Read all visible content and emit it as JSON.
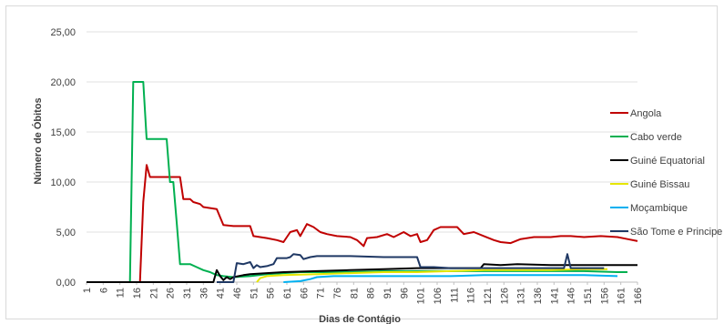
{
  "chart_data": {
    "type": "line",
    "title": "",
    "xlabel": "Dias de Contágio",
    "ylabel": "Número de Óbitos",
    "ylim": [
      0,
      25
    ],
    "xlim": [
      1,
      166
    ],
    "yticks": [
      "0,00",
      "5,00",
      "10,00",
      "15,00",
      "20,00",
      "25,00"
    ],
    "xticks": [
      "1",
      "6",
      "11",
      "16",
      "21",
      "26",
      "31",
      "36",
      "41",
      "46",
      "51",
      "56",
      "61",
      "66",
      "71",
      "76",
      "81",
      "86",
      "91",
      "96",
      "101",
      "106",
      "111",
      "116",
      "121",
      "126",
      "131",
      "136",
      "141",
      "146",
      "151",
      "156",
      "161",
      "166"
    ],
    "grid": true,
    "legend_position": "right",
    "series": [
      {
        "name": "Angola",
        "color": "#c00000",
        "points": [
          [
            1,
            0
          ],
          [
            17,
            0
          ],
          [
            18,
            8
          ],
          [
            19,
            11.7
          ],
          [
            20,
            10.5
          ],
          [
            29,
            10.5
          ],
          [
            30,
            8.3
          ],
          [
            32,
            8.3
          ],
          [
            33,
            8
          ],
          [
            35,
            7.8
          ],
          [
            36,
            7.5
          ],
          [
            40,
            7.3
          ],
          [
            42,
            5.7
          ],
          [
            45,
            5.6
          ],
          [
            50,
            5.6
          ],
          [
            51,
            4.6
          ],
          [
            55,
            4.4
          ],
          [
            58,
            4.2
          ],
          [
            60,
            4
          ],
          [
            62,
            5
          ],
          [
            64,
            5.2
          ],
          [
            65,
            4.6
          ],
          [
            67,
            5.8
          ],
          [
            69,
            5.5
          ],
          [
            71,
            5
          ],
          [
            73,
            4.8
          ],
          [
            76,
            4.6
          ],
          [
            80,
            4.5
          ],
          [
            82,
            4.2
          ],
          [
            84,
            3.6
          ],
          [
            85,
            4.4
          ],
          [
            88,
            4.5
          ],
          [
            91,
            4.8
          ],
          [
            93,
            4.5
          ],
          [
            96,
            5
          ],
          [
            98,
            4.6
          ],
          [
            100,
            4.8
          ],
          [
            101,
            4
          ],
          [
            103,
            4.2
          ],
          [
            105,
            5.2
          ],
          [
            107,
            5.5
          ],
          [
            112,
            5.5
          ],
          [
            114,
            4.8
          ],
          [
            117,
            5
          ],
          [
            120,
            4.6
          ],
          [
            123,
            4.2
          ],
          [
            125,
            4
          ],
          [
            128,
            3.9
          ],
          [
            131,
            4.3
          ],
          [
            135,
            4.5
          ],
          [
            140,
            4.5
          ],
          [
            143,
            4.6
          ],
          [
            146,
            4.6
          ],
          [
            150,
            4.5
          ],
          [
            155,
            4.6
          ],
          [
            160,
            4.5
          ],
          [
            163,
            4.3
          ],
          [
            166,
            4.1
          ]
        ]
      },
      {
        "name": "Cabo verde",
        "color": "#00b050",
        "points": [
          [
            1,
            0
          ],
          [
            14,
            0
          ],
          [
            15,
            20
          ],
          [
            18,
            20
          ],
          [
            19,
            14.3
          ],
          [
            25,
            14.3
          ],
          [
            26,
            10
          ],
          [
            27,
            10
          ],
          [
            28,
            6
          ],
          [
            29,
            1.8
          ],
          [
            32,
            1.8
          ],
          [
            34,
            1.5
          ],
          [
            36,
            1.2
          ],
          [
            38,
            1
          ],
          [
            40,
            0.7
          ],
          [
            42,
            0.6
          ],
          [
            45,
            0.5
          ],
          [
            50,
            0.6
          ],
          [
            55,
            0.8
          ],
          [
            60,
            0.9
          ],
          [
            65,
            1
          ],
          [
            70,
            1
          ],
          [
            80,
            1
          ],
          [
            90,
            1.1
          ],
          [
            100,
            1.1
          ],
          [
            110,
            1.1
          ],
          [
            120,
            1.1
          ],
          [
            130,
            1.1
          ],
          [
            140,
            1.1
          ],
          [
            150,
            1.1
          ],
          [
            160,
            1
          ],
          [
            163,
            1
          ]
        ]
      },
      {
        "name": "Guiné Equatorial",
        "color": "#000000",
        "points": [
          [
            1,
            0
          ],
          [
            39,
            0
          ],
          [
            40,
            1.2
          ],
          [
            41,
            0.6
          ],
          [
            42,
            0.2
          ],
          [
            43,
            0.5
          ],
          [
            44,
            0.3
          ],
          [
            45,
            0.5
          ],
          [
            48,
            0.7
          ],
          [
            50,
            0.8
          ],
          [
            55,
            0.9
          ],
          [
            60,
            1
          ],
          [
            70,
            1.1
          ],
          [
            80,
            1.2
          ],
          [
            90,
            1.3
          ],
          [
            100,
            1.4
          ],
          [
            110,
            1.4
          ],
          [
            119,
            1.4
          ],
          [
            120,
            1.8
          ],
          [
            125,
            1.7
          ],
          [
            130,
            1.8
          ],
          [
            140,
            1.7
          ],
          [
            150,
            1.7
          ],
          [
            160,
            1.7
          ],
          [
            166,
            1.7
          ]
        ]
      },
      {
        "name": "Guiné Bissau",
        "color": "#e6e600",
        "points": [
          [
            52,
            0
          ],
          [
            53,
            0.4
          ],
          [
            55,
            0.6
          ],
          [
            60,
            0.7
          ],
          [
            70,
            0.8
          ],
          [
            80,
            0.9
          ],
          [
            90,
            1
          ],
          [
            100,
            1
          ],
          [
            110,
            1.1
          ],
          [
            120,
            1.2
          ],
          [
            130,
            1.2
          ],
          [
            140,
            1.2
          ],
          [
            150,
            1.3
          ],
          [
            157,
            1.3
          ]
        ]
      },
      {
        "name": "Moçambique",
        "color": "#00b0f0",
        "points": [
          [
            60,
            0
          ],
          [
            65,
            0.1
          ],
          [
            68,
            0.3
          ],
          [
            70,
            0.5
          ],
          [
            75,
            0.6
          ],
          [
            80,
            0.6
          ],
          [
            90,
            0.6
          ],
          [
            100,
            0.6
          ],
          [
            110,
            0.6
          ],
          [
            120,
            0.7
          ],
          [
            130,
            0.7
          ],
          [
            140,
            0.7
          ],
          [
            150,
            0.7
          ],
          [
            160,
            0.6
          ]
        ]
      },
      {
        "name": "São Tome e Principe",
        "color": "#1f3864",
        "points": [
          [
            40,
            0
          ],
          [
            45,
            0
          ],
          [
            46,
            1.9
          ],
          [
            48,
            1.8
          ],
          [
            50,
            2
          ],
          [
            51,
            1.4
          ],
          [
            52,
            1.7
          ],
          [
            53,
            1.5
          ],
          [
            55,
            1.6
          ],
          [
            57,
            1.8
          ],
          [
            58,
            2.4
          ],
          [
            61,
            2.4
          ],
          [
            62,
            2.5
          ],
          [
            63,
            2.8
          ],
          [
            65,
            2.7
          ],
          [
            66,
            2.3
          ],
          [
            68,
            2.5
          ],
          [
            70,
            2.6
          ],
          [
            80,
            2.6
          ],
          [
            90,
            2.5
          ],
          [
            100,
            2.5
          ],
          [
            101,
            1.5
          ],
          [
            105,
            1.5
          ],
          [
            110,
            1.4
          ],
          [
            120,
            1.4
          ],
          [
            130,
            1.4
          ],
          [
            140,
            1.4
          ],
          [
            144,
            1.4
          ],
          [
            145,
            2.8
          ],
          [
            146,
            1.4
          ],
          [
            150,
            1.4
          ],
          [
            156,
            1.4
          ]
        ]
      }
    ]
  }
}
